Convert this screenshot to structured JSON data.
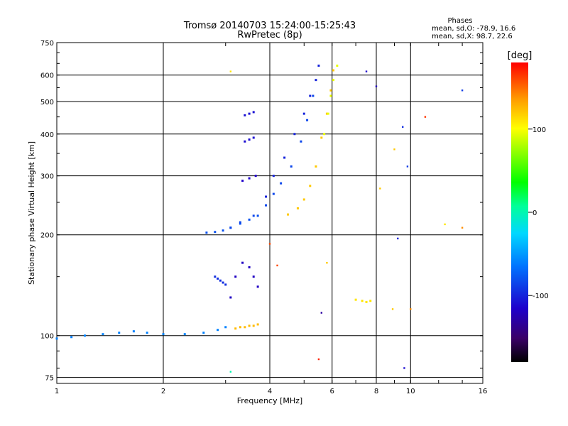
{
  "chart_data": {
    "type": "scatter",
    "title": "Tromsø 20140703 15:24:00-15:25:43",
    "subtitle": "RwPretec (8p)",
    "xlabel": "Frequency [MHz]",
    "ylabel": "Stationary phase Virtual Height [km]",
    "x_scale": "log",
    "y_scale": "log",
    "xlim": [
      1,
      16
    ],
    "ylim": [
      72,
      750
    ],
    "x_ticks": [
      1,
      2,
      4,
      6,
      8,
      10,
      16
    ],
    "x_tick_labels": [
      "1",
      "2",
      "4",
      "6",
      "8",
      "10",
      "16"
    ],
    "y_ticks": [
      75,
      100,
      200,
      300,
      400,
      500,
      600,
      750
    ],
    "y_tick_labels": [
      "75",
      "100",
      "200",
      "300",
      "400",
      "500",
      "600",
      "750"
    ],
    "grid": true,
    "phases_info": {
      "title": "Phases",
      "line_o": "mean, sd,O: -78.9, 16.6",
      "line_x": "mean, sd,X:  98.7, 22.6"
    },
    "colorbar": {
      "label": "[deg]",
      "ticks": [
        100,
        0,
        -100
      ],
      "tick_labels": [
        "100",
        "0",
        "-100"
      ],
      "range": [
        -180,
        180
      ]
    },
    "traces": [
      {
        "x": [
          1.0,
          1.1,
          1.2,
          1.35,
          1.5,
          1.65,
          1.8,
          2.0,
          2.3,
          2.6,
          2.85,
          3.0
        ],
        "y": [
          98,
          99,
          100,
          101,
          102,
          103,
          102,
          101,
          101,
          102,
          104,
          106
        ],
        "phase": -60
      },
      {
        "x": [
          2.65,
          2.8,
          2.95,
          3.1,
          3.3,
          3.5,
          3.7
        ],
        "y": [
          203,
          204,
          206,
          210,
          216,
          222,
          228
        ],
        "phase": -80
      },
      {
        "x": [
          3.1,
          3.3,
          3.6,
          3.9,
          4.1,
          4.3,
          4.6,
          4.9,
          5.1,
          5.3
        ],
        "y": [
          210,
          218,
          228,
          245,
          265,
          285,
          320,
          380,
          440,
          520
        ],
        "phase": -85
      },
      {
        "x": [
          3.9,
          4.1,
          4.4,
          4.7,
          5.0,
          5.2,
          5.4,
          5.5
        ],
        "y": [
          260,
          300,
          340,
          400,
          460,
          520,
          580,
          640
        ],
        "phase": -100
      },
      {
        "x": [
          4.5,
          4.8,
          5.0,
          5.2,
          5.4,
          5.6,
          5.8,
          5.95,
          6.05
        ],
        "y": [
          230,
          240,
          255,
          280,
          320,
          390,
          460,
          540,
          620
        ],
        "phase": 120
      },
      {
        "x": [
          5.7,
          5.85,
          5.95,
          6.05,
          6.2
        ],
        "y": [
          400,
          460,
          520,
          580,
          640
        ],
        "phase": 95
      },
      {
        "x": [
          3.2,
          3.3,
          3.4,
          3.5,
          3.6,
          3.7
        ],
        "y": [
          105,
          106,
          106,
          107,
          107,
          108
        ],
        "phase": 125
      },
      {
        "x": [
          3.35,
          3.5,
          3.65
        ],
        "y": [
          290,
          295,
          300
        ],
        "phase": -115
      },
      {
        "x": [
          3.4,
          3.5,
          3.6
        ],
        "y": [
          380,
          385,
          390
        ],
        "phase": -110
      },
      {
        "x": [
          3.4,
          3.5,
          3.6
        ],
        "y": [
          455,
          460,
          465
        ],
        "phase": -108
      },
      {
        "x": [
          2.8,
          2.85,
          2.9,
          2.95,
          3.0
        ],
        "y": [
          150,
          148,
          146,
          144,
          142
        ],
        "phase": -95
      },
      {
        "x": [
          3.1,
          3.2,
          3.35,
          3.5,
          3.6,
          3.7
        ],
        "y": [
          130,
          150,
          165,
          160,
          150,
          140
        ],
        "phase": -118
      },
      {
        "x": [
          7.0,
          7.3,
          7.5,
          7.7
        ],
        "y": [
          128,
          127,
          126,
          127
        ],
        "phase": 110
      }
    ],
    "scattered_points": [
      {
        "x": 3.1,
        "y": 615,
        "phase": 110
      },
      {
        "x": 7.5,
        "y": 615,
        "phase": -115
      },
      {
        "x": 8.0,
        "y": 555,
        "phase": -118
      },
      {
        "x": 9.5,
        "y": 420,
        "phase": -95
      },
      {
        "x": 11.0,
        "y": 450,
        "phase": 165
      },
      {
        "x": 14.0,
        "y": 540,
        "phase": -90
      },
      {
        "x": 9.8,
        "y": 320,
        "phase": -90
      },
      {
        "x": 9.0,
        "y": 360,
        "phase": 120
      },
      {
        "x": 8.2,
        "y": 275,
        "phase": 120
      },
      {
        "x": 12.5,
        "y": 215,
        "phase": 110
      },
      {
        "x": 14.0,
        "y": 210,
        "phase": 140
      },
      {
        "x": 9.2,
        "y": 195,
        "phase": -100
      },
      {
        "x": 8.9,
        "y": 120,
        "phase": 120
      },
      {
        "x": 10.0,
        "y": 120,
        "phase": 140
      },
      {
        "x": 5.5,
        "y": 85,
        "phase": 170
      },
      {
        "x": 3.1,
        "y": 78,
        "phase": 0
      },
      {
        "x": 9.6,
        "y": 80,
        "phase": -110
      },
      {
        "x": 5.6,
        "y": 117,
        "phase": -130
      },
      {
        "x": 4.0,
        "y": 188,
        "phase": 160
      },
      {
        "x": 4.2,
        "y": 162,
        "phase": 160
      },
      {
        "x": 5.8,
        "y": 165,
        "phase": 120
      }
    ]
  }
}
